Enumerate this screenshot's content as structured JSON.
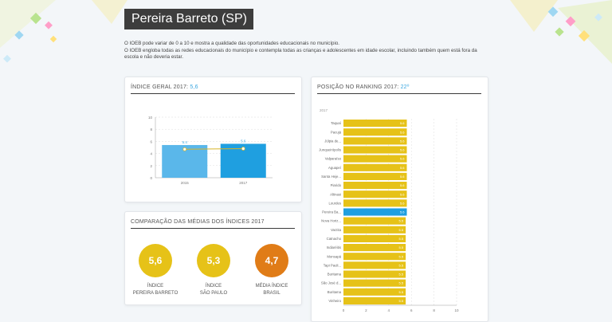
{
  "page": {
    "title": "Pereira Barreto (SP)",
    "intro_line1": "O IOEB pode variar de 0 a 10 e mostra a qualidade das oportunidades educacionais no município.",
    "intro_line2": "O IOEB engloba todas as redes educacionais do município e contempla todas as crianças e adolescentes em idade escolar, incluindo também quem está fora da",
    "intro_line3": "escola e não deveria estar."
  },
  "indice_geral": {
    "title_prefix": "ÍNDICE GERAL 2017: ",
    "title_value": "5,6"
  },
  "ranking": {
    "title_prefix": "POSIÇÃO NO RANKING 2017: ",
    "title_value": "22º"
  },
  "comparacao": {
    "title": "COMPARAÇÃO DAS MÉDIAS DOS ÍNDICES 2017",
    "items": [
      {
        "value": "5,6",
        "label1": "ÍNDICE",
        "label2": "PEREIRA BARRETO",
        "color": "#e6c218"
      },
      {
        "value": "5,3",
        "label1": "ÍNDICE",
        "label2": "SÃO PAULO",
        "color": "#e6c218"
      },
      {
        "value": "4,7",
        "label1": "MÉDIA ÍNDICE",
        "label2": "BRASIL",
        "color": "#e07c17"
      }
    ]
  },
  "chart_data": [
    {
      "type": "bar",
      "categories": [
        "2015",
        "2017"
      ],
      "series": [
        {
          "values": [
            5.4,
            5.6
          ],
          "color": "#5ab7ea"
        }
      ],
      "line_values": [
        4.7,
        4.8
      ],
      "bar_labels": [
        "5.4",
        "5.6"
      ],
      "y_ticks": [
        "0",
        "2",
        "4",
        "6",
        "8",
        "10"
      ],
      "ylim": [
        0,
        10
      ],
      "colors": {
        "bar_2015": "#5ab7ea",
        "bar_2017": "#1f9fe0",
        "line": "#d6b42a"
      }
    },
    {
      "type": "bar",
      "orientation": "horizontal",
      "year_label": "2017",
      "categories": [
        "Taquaí",
        "Pacujá",
        "Júlpia de...",
        "Junqueirópolis",
        "Valparaíso",
        "Aguapeí",
        "Santa Heje...",
        "Piarido",
        "Altinasi",
        "Lourdes",
        "Pereira Ba...",
        "Nova Horiz...",
        "Varzita",
        "Catnacho",
        "Indiaréitis",
        "Monsapá",
        "Tapi Pauli...",
        "Buritama",
        "São José d...",
        "Buritama",
        "Vinheiro"
      ],
      "values": [
        5.6,
        5.6,
        5.6,
        5.6,
        5.6,
        5.6,
        5.6,
        5.6,
        5.6,
        5.6,
        5.6,
        5.5,
        5.5,
        5.5,
        5.5,
        5.5,
        5.5,
        5.5,
        5.5,
        5.5,
        5.5
      ],
      "value_labels": [
        "5.6",
        "5.6",
        "5.6",
        "5.6",
        "5.6",
        "5.6",
        "5.6",
        "5.6",
        "5.6",
        "5.6",
        "5.6",
        "5.5",
        "5.5",
        "5.5",
        "5.5",
        "5.5",
        "5.5",
        "5.5",
        "5.5",
        "5.5",
        "5.5"
      ],
      "highlight": "Pereira Ba...",
      "x_ticks": [
        "0",
        "2",
        "4",
        "6",
        "8",
        "10"
      ],
      "xlim": [
        0,
        10
      ],
      "colors": {
        "bar": "#e6c218",
        "highlight": "#1f9fe0"
      }
    }
  ]
}
